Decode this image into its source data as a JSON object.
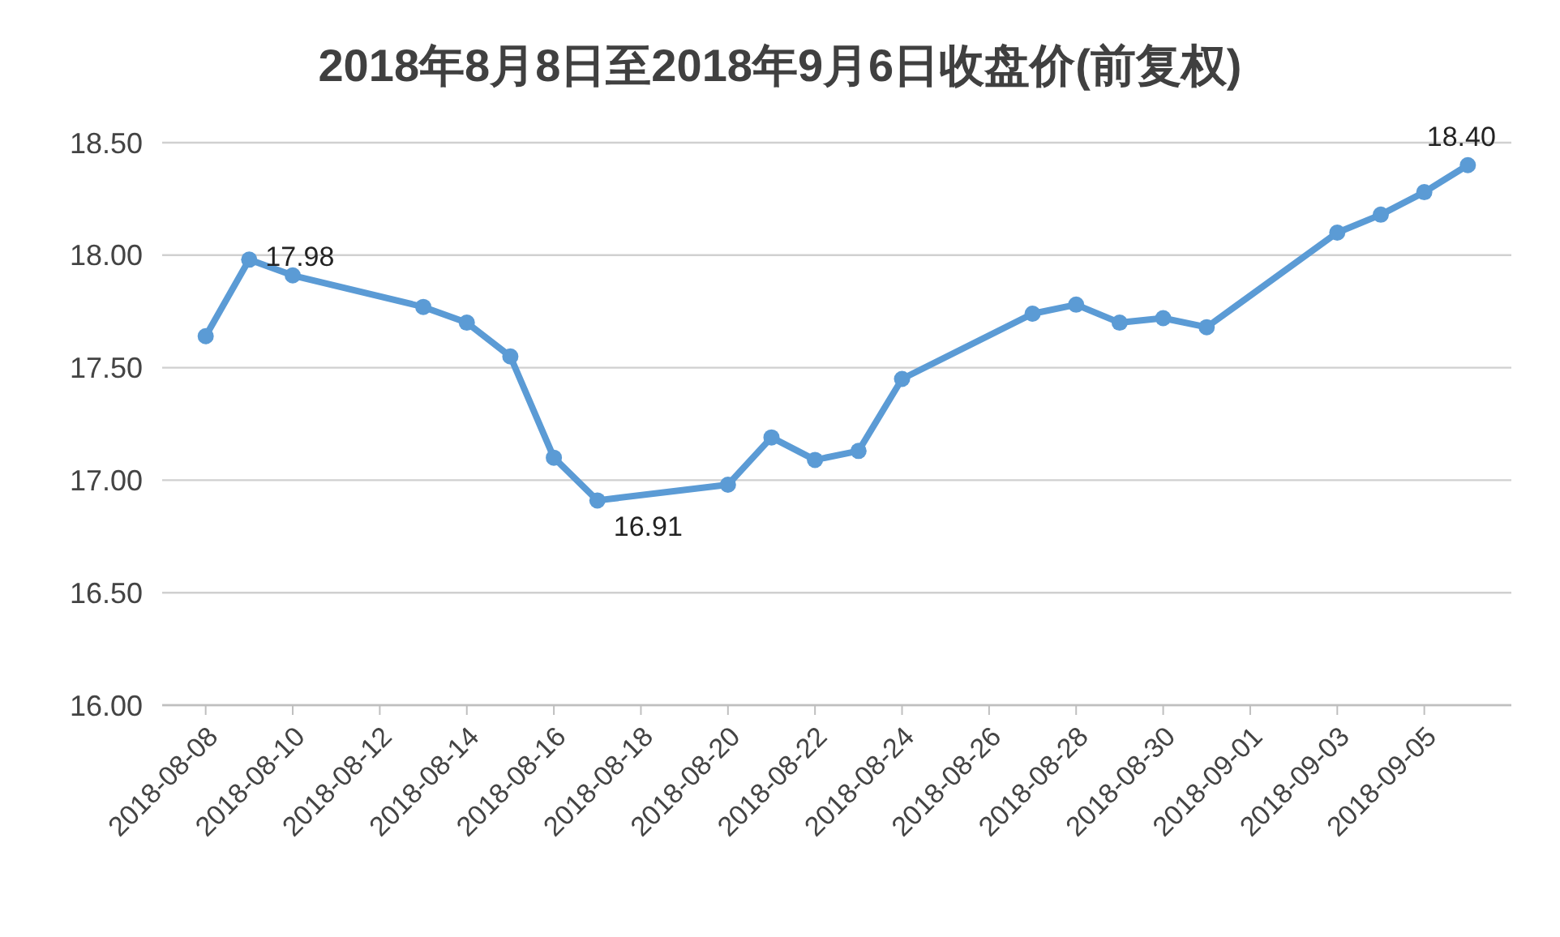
{
  "chart_data": {
    "type": "line",
    "title": "2018年8月8日至2018年9月6日收盘价(前复权)",
    "x": [
      "2018-08-08",
      "2018-08-09",
      "2018-08-10",
      "2018-08-13",
      "2018-08-14",
      "2018-08-15",
      "2018-08-16",
      "2018-08-17",
      "2018-08-20",
      "2018-08-21",
      "2018-08-22",
      "2018-08-23",
      "2018-08-24",
      "2018-08-27",
      "2018-08-28",
      "2018-08-29",
      "2018-08-30",
      "2018-08-31",
      "2018-09-03",
      "2018-09-04",
      "2018-09-05",
      "2018-09-06"
    ],
    "series": [
      {
        "color": "#5b9bd5",
        "values": [
          17.64,
          17.98,
          17.91,
          17.77,
          17.7,
          17.55,
          17.1,
          16.91,
          16.98,
          17.19,
          17.09,
          17.13,
          17.45,
          17.74,
          17.78,
          17.7,
          17.72,
          17.68,
          18.1,
          18.18,
          18.28,
          18.4
        ],
        "value_labels": [
          null,
          "17.98",
          null,
          null,
          null,
          null,
          null,
          "16.91",
          null,
          null,
          null,
          null,
          null,
          null,
          null,
          null,
          null,
          null,
          null,
          null,
          null,
          "18.40"
        ]
      }
    ],
    "xlim": [
      "2018-08-07",
      "2018-09-07"
    ],
    "xticks": [
      "2018-08-08",
      "2018-08-10",
      "2018-08-12",
      "2018-08-14",
      "2018-08-16",
      "2018-08-18",
      "2018-08-20",
      "2018-08-22",
      "2018-08-24",
      "2018-08-26",
      "2018-08-28",
      "2018-08-30",
      "2018-09-01",
      "2018-09-03",
      "2018-09-05"
    ],
    "ylim": [
      16,
      18.5
    ],
    "yticks": [
      {
        "value": 16,
        "label": "16.00"
      },
      {
        "value": 16.5,
        "label": "16.50"
      },
      {
        "value": 17,
        "label": "17.00"
      },
      {
        "value": 17.5,
        "label": "17.50"
      },
      {
        "value": 18,
        "label": "18.00"
      },
      {
        "value": 18.5,
        "label": "18.50"
      }
    ],
    "grid": "y",
    "marker": "circle",
    "line_style": "solid"
  }
}
